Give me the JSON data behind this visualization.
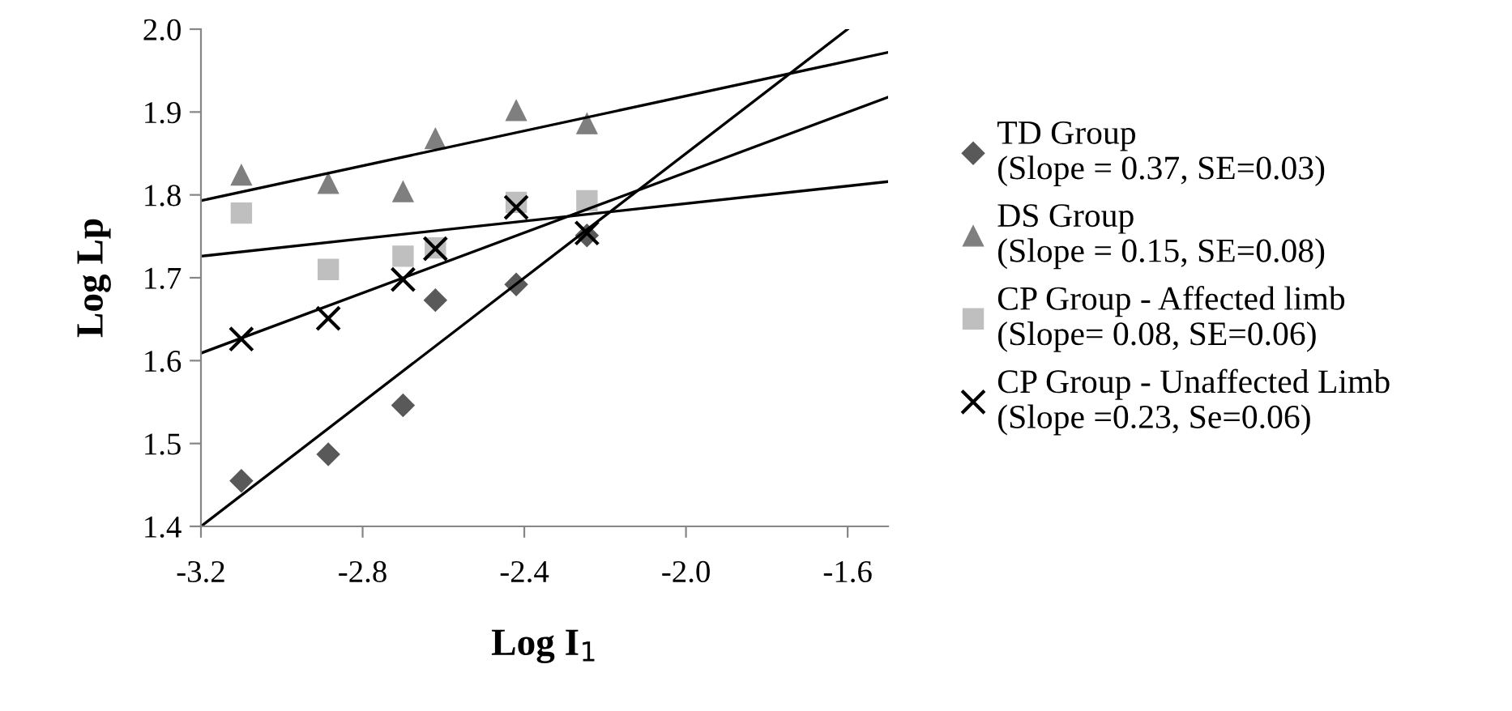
{
  "chart_data": {
    "type": "scatter",
    "xlabel": "Log I$_{1}$",
    "ylabel": "Log Lp",
    "xlim": [
      -3.2,
      -1.5
    ],
    "xticks": [
      {
        "value": -3.2,
        "label": "-3.2"
      },
      {
        "value": -2.8,
        "label": "-2.8"
      },
      {
        "value": -2.4,
        "label": "-2.4"
      },
      {
        "value": -2.0,
        "label": "-2.0"
      },
      {
        "value": -1.6,
        "label": "-1.6"
      }
    ],
    "ylim": [
      1.4,
      2.0
    ],
    "yticks": [
      {
        "value": 1.4,
        "label": "1.4"
      },
      {
        "value": 1.5,
        "label": "1.5"
      },
      {
        "value": 1.6,
        "label": "1.6"
      },
      {
        "value": 1.7,
        "label": "1.7"
      },
      {
        "value": 1.8,
        "label": "1.8"
      },
      {
        "value": 1.9,
        "label": "1.9"
      },
      {
        "value": 2.0,
        "label": "2.0"
      }
    ],
    "grid": false,
    "legend": "right",
    "series": [
      {
        "name": "TD Group\n(Slope = 0.37, SE=0.03)",
        "color": "#595959",
        "marker": "diamond",
        "x": [
          -3.1,
          -2.885,
          -2.7,
          -2.62,
          -2.42,
          -2.245
        ],
        "values": [
          1.455,
          1.487,
          1.546,
          1.673,
          1.692,
          1.751
        ]
      },
      {
        "name": "DS Group\n(Slope = 0.15, SE=0.08)",
        "color": "#7f7f7f",
        "marker": "triangle",
        "x": [
          -3.1,
          -2.885,
          -2.7,
          -2.62,
          -2.42,
          -2.245
        ],
        "values": [
          1.824,
          1.814,
          1.804,
          1.868,
          1.902,
          1.886
        ]
      },
      {
        "name": "CP Group - Affected limb\n(Slope= 0.08, SE=0.06)",
        "color": "#bfbfbf",
        "marker": "square",
        "x": [
          -3.1,
          -2.885,
          -2.7,
          -2.62,
          -2.42,
          -2.245
        ],
        "values": [
          1.778,
          1.71,
          1.726,
          1.736,
          1.791,
          1.793
        ]
      },
      {
        "name": "CP Group - Unaffected Limb\n(Slope =0.23, Se=0.06)",
        "color": "#000000",
        "marker": "cross",
        "x": [
          -3.1,
          -2.885,
          -2.7,
          -2.62,
          -2.42,
          -2.245
        ],
        "values": [
          1.626,
          1.651,
          1.698,
          1.735,
          1.785,
          1.754
        ]
      },
      {
        "type": "line",
        "color": "#000000",
        "marker": "none",
        "x": [
          -3.2,
          -1.6
        ],
        "values": [
          1.4,
          2.0
        ]
      },
      {
        "type": "line",
        "color": "#000000",
        "marker": "none",
        "x": [
          -3.2,
          -1.5
        ],
        "values": [
          1.793,
          1.972
        ]
      },
      {
        "type": "line",
        "color": "#000000",
        "marker": "none",
        "x": [
          -3.2,
          -1.5
        ],
        "values": [
          1.726,
          1.816
        ]
      },
      {
        "type": "line",
        "color": "#000000",
        "marker": "none",
        "x": [
          -3.2,
          -1.5
        ],
        "values": [
          1.609,
          1.918
        ]
      }
    ]
  }
}
